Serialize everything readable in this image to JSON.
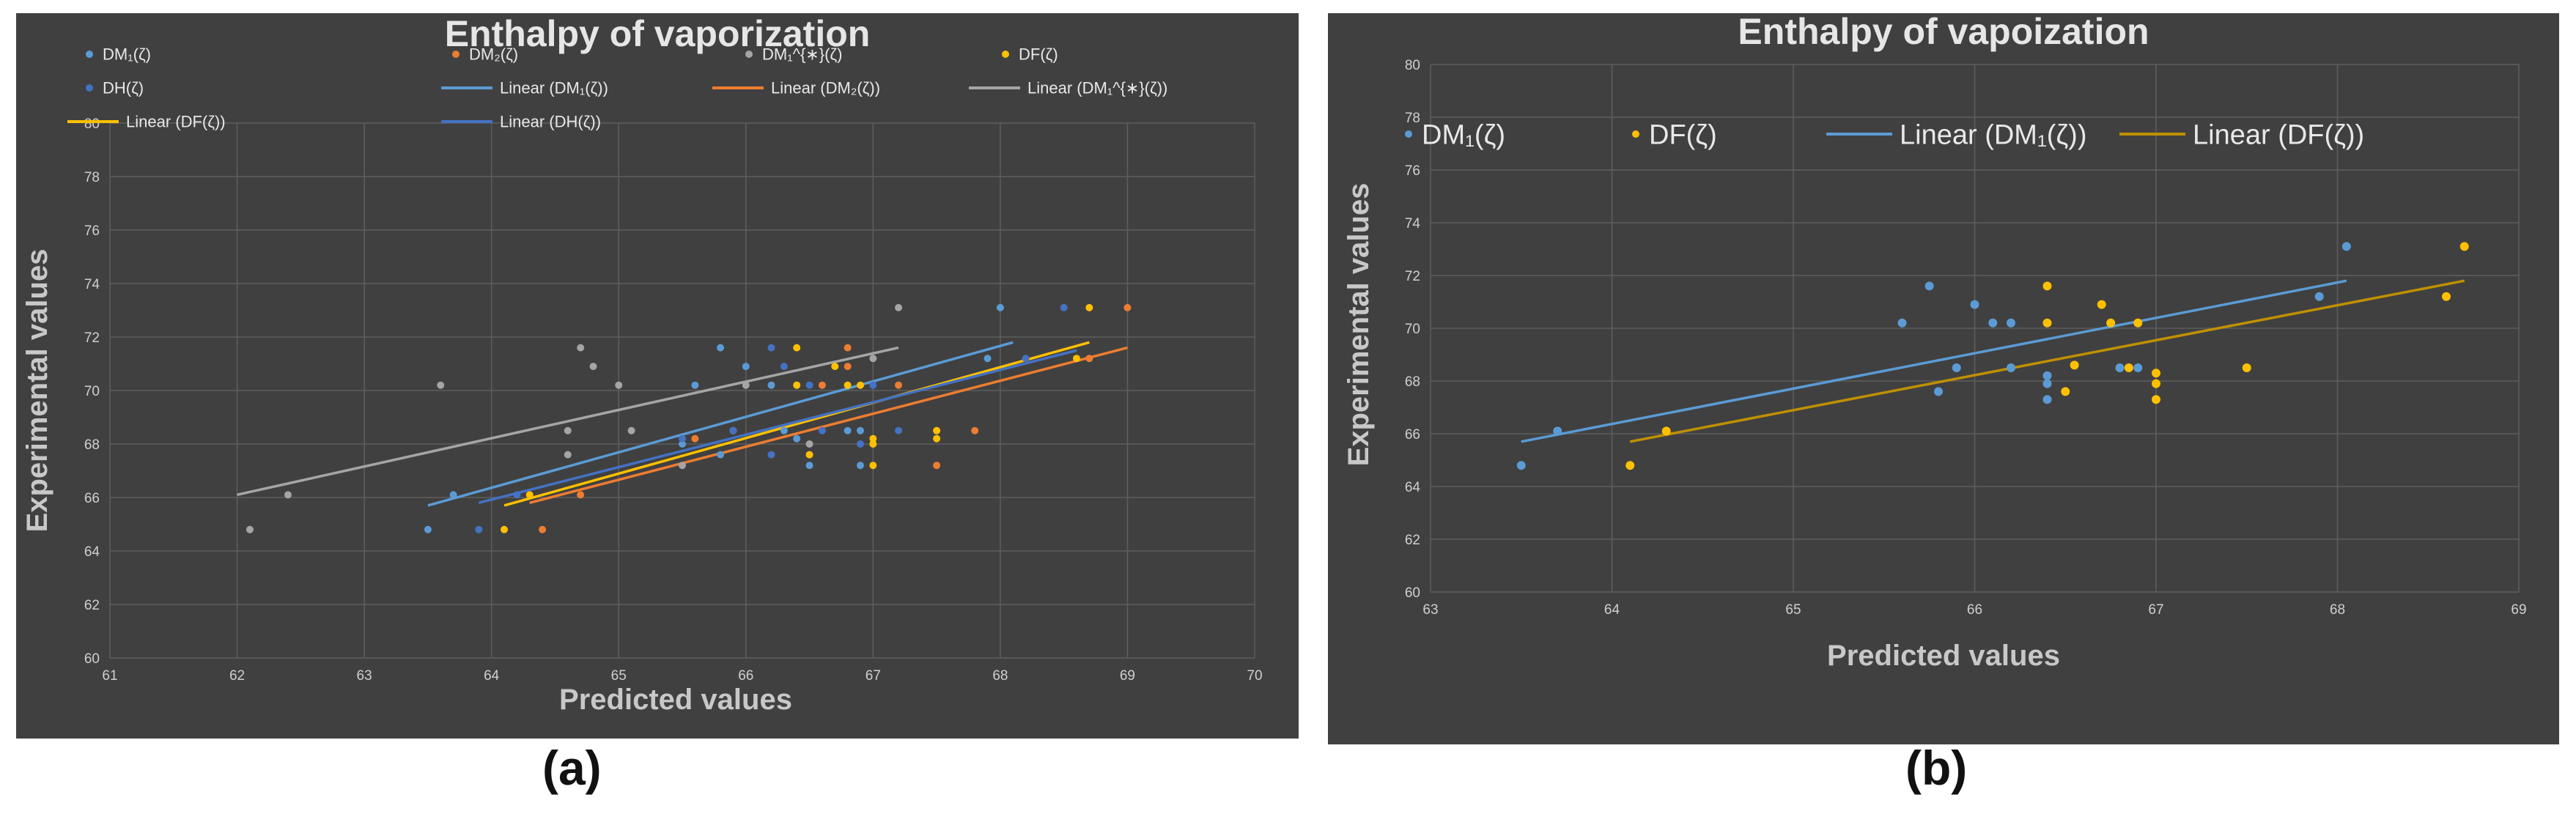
{
  "captions": [
    "(a)",
    "(b)"
  ],
  "colors": {
    "DM1": "#5b9bd5",
    "DM2": "#ed7d31",
    "DM1s": "#a5a5a5",
    "DF": "#ffc000",
    "DH": "#4472c4",
    "linDF_b": "#bf9000"
  },
  "chart_data": [
    {
      "type": "scatter",
      "title": "Enthalpy of vaporization",
      "xlabel": "Predicted values",
      "ylabel": "Experimental values",
      "xlim": [
        61,
        70
      ],
      "ylim": [
        60,
        80
      ],
      "xticks": [
        61,
        62,
        63,
        64,
        65,
        66,
        67,
        68,
        69,
        70
      ],
      "yticks": [
        60,
        62,
        64,
        66,
        68,
        70,
        72,
        74,
        76,
        78,
        80
      ],
      "grid": true,
      "legend_position": "top",
      "series": [
        {
          "name": "DM₁(ζ)",
          "color_key": "DM1",
          "points": [
            [
              63.5,
              64.8
            ],
            [
              63.7,
              66.1
            ],
            [
              65.5,
              68.0
            ],
            [
              65.8,
              67.6
            ],
            [
              66.3,
              68.5
            ],
            [
              66.5,
              67.2
            ],
            [
              66.4,
              68.2
            ],
            [
              66.9,
              67.2
            ],
            [
              65.6,
              70.2
            ],
            [
              65.8,
              71.6
            ],
            [
              66.0,
              70.9
            ],
            [
              66.2,
              70.2
            ],
            [
              66.4,
              70.2
            ],
            [
              66.8,
              68.5
            ],
            [
              66.9,
              68.5
            ],
            [
              68.0,
              73.1
            ],
            [
              67.9,
              71.2
            ]
          ]
        },
        {
          "name": "DM₂(ζ)",
          "color_key": "DM2",
          "points": [
            [
              64.4,
              64.8
            ],
            [
              64.7,
              66.1
            ],
            [
              65.6,
              68.2
            ],
            [
              66.5,
              67.6
            ],
            [
              67.0,
              68.0
            ],
            [
              66.8,
              70.9
            ],
            [
              66.6,
              70.2
            ],
            [
              66.8,
              71.6
            ],
            [
              67.2,
              70.2
            ],
            [
              67.5,
              68.5
            ],
            [
              67.5,
              67.2
            ],
            [
              67.8,
              68.5
            ],
            [
              68.7,
              71.2
            ],
            [
              69.0,
              73.1
            ]
          ]
        },
        {
          "name": "DM₁^{∗}(ζ)",
          "color_key": "DM1s",
          "points": [
            [
              62.1,
              64.8
            ],
            [
              62.4,
              66.1
            ],
            [
              64.6,
              68.5
            ],
            [
              64.6,
              67.6
            ],
            [
              64.7,
              71.6
            ],
            [
              64.8,
              70.9
            ],
            [
              65.0,
              70.2
            ],
            [
              65.1,
              68.5
            ],
            [
              65.5,
              67.2
            ],
            [
              66.0,
              70.2
            ],
            [
              66.5,
              68.0
            ],
            [
              67.0,
              71.2
            ],
            [
              67.2,
              73.1
            ],
            [
              63.6,
              70.2
            ]
          ]
        },
        {
          "name": "DF(ζ)",
          "color_key": "DF",
          "points": [
            [
              64.1,
              64.8
            ],
            [
              64.3,
              66.1
            ],
            [
              65.9,
              68.5
            ],
            [
              66.4,
              70.2
            ],
            [
              66.4,
              71.6
            ],
            [
              66.5,
              67.6
            ],
            [
              66.7,
              70.9
            ],
            [
              66.8,
              70.2
            ],
            [
              66.9,
              70.2
            ],
            [
              67.0,
              68.2
            ],
            [
              67.0,
              67.2
            ],
            [
              67.0,
              68.0
            ],
            [
              67.5,
              68.5
            ],
            [
              67.5,
              68.2
            ],
            [
              68.6,
              71.2
            ],
            [
              68.7,
              73.1
            ]
          ]
        },
        {
          "name": "DH(ζ)",
          "color_key": "DH",
          "points": [
            [
              63.9,
              64.8
            ],
            [
              64.2,
              66.1
            ],
            [
              65.5,
              68.2
            ],
            [
              65.9,
              68.5
            ],
            [
              66.2,
              67.6
            ],
            [
              66.2,
              71.6
            ],
            [
              66.3,
              70.9
            ],
            [
              66.5,
              70.2
            ],
            [
              66.6,
              68.5
            ],
            [
              67.0,
              70.2
            ],
            [
              66.9,
              68.0
            ],
            [
              67.2,
              68.5
            ],
            [
              68.2,
              71.2
            ],
            [
              68.5,
              73.1
            ]
          ]
        }
      ],
      "trendlines": [
        {
          "name": "Linear (DM₁(ζ))",
          "color_key": "DM1",
          "from": [
            63.5,
            65.7
          ],
          "to": [
            68.1,
            71.8
          ]
        },
        {
          "name": "Linear (DM₂(ζ))",
          "color_key": "DM2",
          "from": [
            64.3,
            65.8
          ],
          "to": [
            69.0,
            71.6
          ]
        },
        {
          "name": "Linear (DM₁^{∗}(ζ))",
          "color_key": "DM1s",
          "from": [
            62.0,
            66.1
          ],
          "to": [
            67.2,
            71.6
          ]
        },
        {
          "name": "Linear (DF(ζ))",
          "color_key": "DF",
          "from": [
            64.1,
            65.7
          ],
          "to": [
            68.7,
            71.8
          ]
        },
        {
          "name": "Linear (DH(ζ))",
          "color_key": "DH",
          "from": [
            63.9,
            65.8
          ],
          "to": [
            68.6,
            71.5
          ]
        }
      ],
      "legend": [
        {
          "label": "DM₁(ζ)",
          "kind": "marker",
          "color_key": "DM1"
        },
        {
          "label": "DM₂(ζ)",
          "kind": "marker",
          "color_key": "DM2"
        },
        {
          "label": "DM₁^{∗}(ζ)",
          "kind": "marker",
          "color_key": "DM1s"
        },
        {
          "label": "DF(ζ)",
          "kind": "marker",
          "color_key": "DF"
        },
        {
          "label": "DH(ζ)",
          "kind": "marker",
          "color_key": "DH"
        },
        {
          "label": "Linear (DM₁(ζ))",
          "kind": "line",
          "color_key": "DM1"
        },
        {
          "label": "Linear (DM₂(ζ))",
          "kind": "line",
          "color_key": "DM2"
        },
        {
          "label": "Linear (DM₁^{∗}(ζ))",
          "kind": "line",
          "color_key": "DM1s"
        },
        {
          "label": "Linear (DF(ζ))",
          "kind": "line",
          "color_key": "DF"
        },
        {
          "label": "Linear (DH(ζ))",
          "kind": "line",
          "color_key": "DH"
        }
      ]
    },
    {
      "type": "scatter",
      "title": "Enthalpy of vapoization",
      "xlabel": "Predicted values",
      "ylabel": "Experimental values",
      "xlim": [
        63,
        69
      ],
      "ylim": [
        60,
        80
      ],
      "xticks": [
        63,
        64,
        65,
        66,
        67,
        68,
        69
      ],
      "yticks": [
        60,
        62,
        64,
        66,
        68,
        70,
        72,
        74,
        76,
        78,
        80
      ],
      "grid": true,
      "legend_position": "top",
      "series": [
        {
          "name": "DM₁(ζ)",
          "color_key": "DM1",
          "points": [
            [
              63.5,
              64.8
            ],
            [
              63.7,
              66.1
            ],
            [
              65.6,
              70.2
            ],
            [
              65.75,
              71.6
            ],
            [
              65.8,
              67.6
            ],
            [
              65.9,
              68.5
            ],
            [
              66.0,
              70.9
            ],
            [
              66.1,
              70.2
            ],
            [
              66.2,
              68.5
            ],
            [
              66.2,
              70.2
            ],
            [
              66.4,
              68.2
            ],
            [
              66.4,
              67.9
            ],
            [
              66.4,
              67.3
            ],
            [
              66.8,
              68.5
            ],
            [
              66.9,
              68.5
            ],
            [
              67.9,
              71.2
            ],
            [
              68.05,
              73.1
            ]
          ]
        },
        {
          "name": "DF(ζ)",
          "color_key": "DF",
          "points": [
            [
              64.1,
              64.8
            ],
            [
              64.3,
              66.1
            ],
            [
              66.4,
              70.2
            ],
            [
              66.4,
              71.6
            ],
            [
              66.5,
              67.6
            ],
            [
              66.55,
              68.6
            ],
            [
              66.7,
              70.9
            ],
            [
              66.75,
              70.2
            ],
            [
              66.85,
              68.5
            ],
            [
              66.9,
              70.2
            ],
            [
              67.0,
              68.3
            ],
            [
              67.0,
              67.9
            ],
            [
              67.0,
              67.3
            ],
            [
              67.5,
              68.5
            ],
            [
              68.6,
              71.2
            ],
            [
              68.7,
              73.1
            ]
          ]
        }
      ],
      "trendlines": [
        {
          "name": "Linear (DM₁(ζ))",
          "color_key": "DM1",
          "from": [
            63.5,
            65.7
          ],
          "to": [
            68.05,
            71.8
          ]
        },
        {
          "name": "Linear (DF(ζ))",
          "color_key": "linDF_b",
          "from": [
            64.1,
            65.7
          ],
          "to": [
            68.7,
            71.8
          ]
        }
      ],
      "legend": [
        {
          "label": "DM₁(ζ)",
          "kind": "marker",
          "color_key": "DM1"
        },
        {
          "label": "DF(ζ)",
          "kind": "marker",
          "color_key": "DF"
        },
        {
          "label": "Linear (DM₁(ζ))",
          "kind": "line",
          "color_key": "DM1"
        },
        {
          "label": "Linear (DF(ζ))",
          "kind": "line",
          "color_key": "linDF_b"
        }
      ]
    }
  ]
}
